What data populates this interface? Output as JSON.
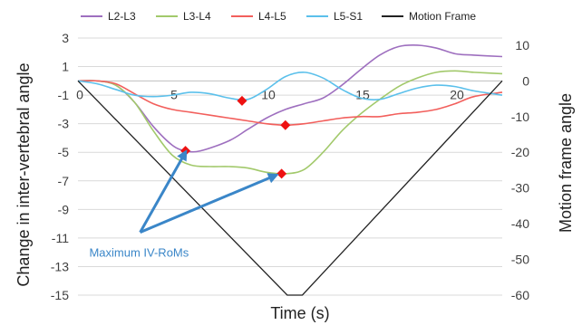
{
  "chart_data": {
    "type": "line",
    "title": "",
    "xlabel": "Time (s)",
    "ylabel": "Change in inter-vertebral angle",
    "y2label": "Motion frame angle",
    "xlim": [
      0,
      22.5
    ],
    "ylim": [
      -15,
      3
    ],
    "y2lim": [
      -60,
      12
    ],
    "x_ticks": [
      0,
      5,
      10,
      15,
      20
    ],
    "y_ticks": [
      3,
      1,
      -1,
      -3,
      -5,
      -7,
      -9,
      -11,
      -13,
      -15
    ],
    "y2_ticks": [
      10,
      0,
      -10,
      -20,
      -30,
      -40,
      -50,
      -60
    ],
    "legend_position": "top",
    "series": [
      {
        "name": "L2-L3",
        "color": "#9e6fbf",
        "axis": "left",
        "points": [
          [
            0,
            0
          ],
          [
            1,
            0
          ],
          [
            2,
            -0.3
          ],
          [
            3,
            -1.5
          ],
          [
            4,
            -3.2
          ],
          [
            5,
            -4.5
          ],
          [
            5.7,
            -4.9
          ],
          [
            6.5,
            -4.9
          ],
          [
            8,
            -4.2
          ],
          [
            9,
            -3.4
          ],
          [
            10,
            -2.6
          ],
          [
            11,
            -2
          ],
          [
            12,
            -1.6
          ],
          [
            13,
            -1.2
          ],
          [
            14,
            -0.3
          ],
          [
            15,
            0.8
          ],
          [
            16,
            1.8
          ],
          [
            17,
            2.4
          ],
          [
            18,
            2.5
          ],
          [
            19,
            2.3
          ],
          [
            20,
            1.9
          ],
          [
            21,
            1.8
          ],
          [
            22.5,
            1.7
          ]
        ]
      },
      {
        "name": "L3-L4",
        "color": "#a2c96b",
        "axis": "left",
        "points": [
          [
            0,
            0
          ],
          [
            1,
            0
          ],
          [
            2,
            -0.3
          ],
          [
            3,
            -1.5
          ],
          [
            4,
            -3.5
          ],
          [
            5,
            -5.2
          ],
          [
            6,
            -5.9
          ],
          [
            7,
            -6
          ],
          [
            8,
            -6
          ],
          [
            9,
            -6.1
          ],
          [
            10,
            -6.4
          ],
          [
            11,
            -6.5
          ],
          [
            12,
            -6.2
          ],
          [
            13,
            -5
          ],
          [
            14,
            -3.5
          ],
          [
            15,
            -2.3
          ],
          [
            16,
            -1.3
          ],
          [
            17,
            -0.4
          ],
          [
            18,
            0.2
          ],
          [
            19,
            0.6
          ],
          [
            20,
            0.7
          ],
          [
            21,
            0.6
          ],
          [
            22.5,
            0.5
          ]
        ]
      },
      {
        "name": "L4-L5",
        "color": "#f25f5c",
        "axis": "left",
        "points": [
          [
            0,
            0
          ],
          [
            1,
            0
          ],
          [
            2,
            -0.2
          ],
          [
            3,
            -0.9
          ],
          [
            4,
            -1.6
          ],
          [
            5,
            -2
          ],
          [
            6,
            -2.2
          ],
          [
            7,
            -2.4
          ],
          [
            8,
            -2.6
          ],
          [
            9,
            -2.8
          ],
          [
            10,
            -3
          ],
          [
            11,
            -3.1
          ],
          [
            12,
            -3
          ],
          [
            13,
            -2.8
          ],
          [
            14,
            -2.6
          ],
          [
            15,
            -2.5
          ],
          [
            16,
            -2.5
          ],
          [
            17,
            -2.3
          ],
          [
            18,
            -2.2
          ],
          [
            19,
            -2
          ],
          [
            20,
            -1.6
          ],
          [
            21,
            -1.1
          ],
          [
            22.5,
            -0.8
          ]
        ]
      },
      {
        "name": "L5-S1",
        "color": "#5bc0eb",
        "axis": "left",
        "points": [
          [
            0,
            0
          ],
          [
            1,
            -0.2
          ],
          [
            2,
            -0.6
          ],
          [
            3,
            -1
          ],
          [
            4,
            -1.1
          ],
          [
            5,
            -1
          ],
          [
            6,
            -0.8
          ],
          [
            7,
            -0.9
          ],
          [
            8,
            -1.2
          ],
          [
            9,
            -1.3
          ],
          [
            10,
            -0.6
          ],
          [
            11,
            0.3
          ],
          [
            12,
            0.6
          ],
          [
            13,
            0.2
          ],
          [
            14,
            -0.6
          ],
          [
            15,
            -1.2
          ],
          [
            16,
            -1.3
          ],
          [
            17,
            -0.9
          ],
          [
            18,
            -0.5
          ],
          [
            19,
            -0.3
          ],
          [
            20,
            -0.4
          ],
          [
            21,
            -0.7
          ],
          [
            22.5,
            -1
          ]
        ]
      },
      {
        "name": "Motion Frame",
        "color": "#222222",
        "axis": "right",
        "points": [
          [
            0,
            0
          ],
          [
            11.1,
            -60
          ],
          [
            11.9,
            -60
          ],
          [
            22.5,
            0
          ]
        ]
      }
    ],
    "markers": [
      {
        "x": 5.7,
        "y": -4.9,
        "color": "#ee1111"
      },
      {
        "x": 8.7,
        "y": -1.4,
        "color": "#ee1111"
      },
      {
        "x": 11,
        "y": -3.1,
        "color": "#ee1111"
      },
      {
        "x": 10.8,
        "y": -6.5,
        "color": "#ee1111"
      }
    ],
    "annotation": {
      "text": "Maximum IV-RoMs",
      "color": "#3a86c8",
      "arrow_targets": [
        [
          5.7,
          -5
        ],
        [
          10.5,
          -6.6
        ]
      ],
      "arrow_origin": [
        3.3,
        -10.6
      ],
      "text_anchor": [
        0.6,
        -12
      ]
    }
  }
}
